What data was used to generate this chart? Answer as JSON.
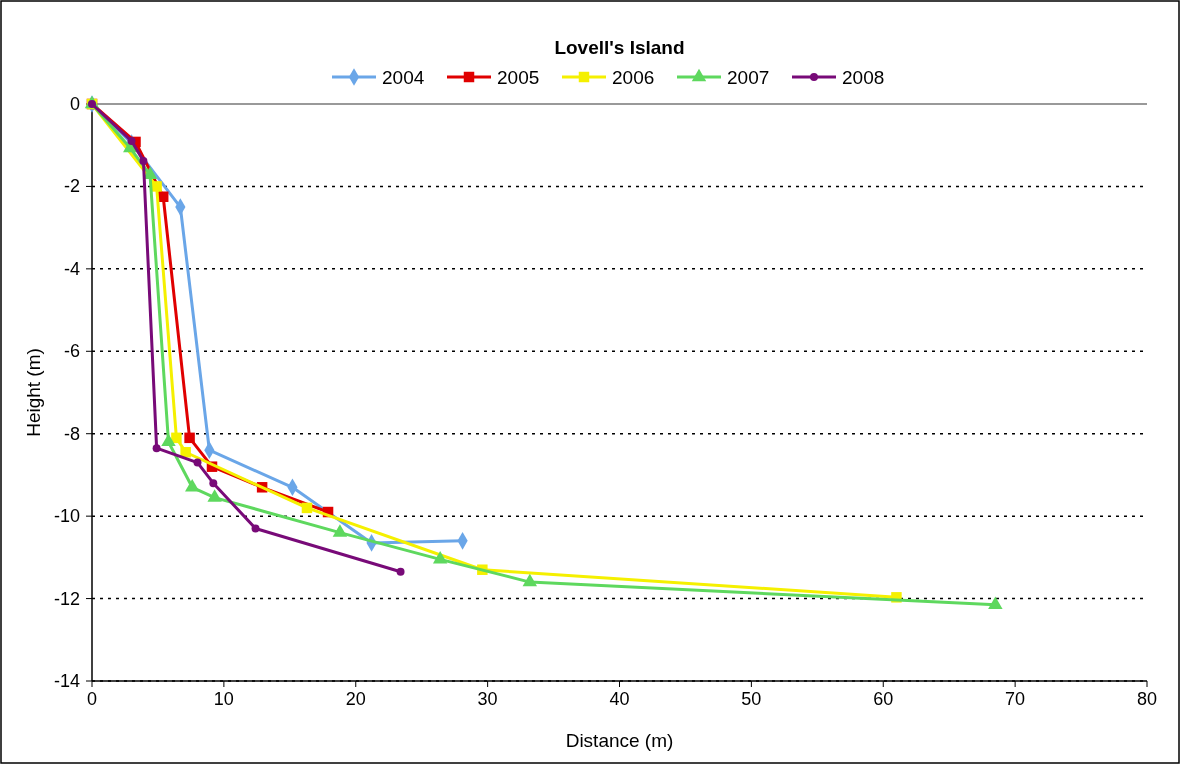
{
  "chart_data": {
    "type": "line",
    "title": "Lovell's Island",
    "xlabel": "Distance (m)",
    "ylabel": "Height (m)",
    "xlim": [
      0,
      80
    ],
    "xticks": [
      0,
      10,
      20,
      30,
      40,
      50,
      60,
      70,
      80
    ],
    "ylim": [
      -14,
      0
    ],
    "yticks": [
      -14,
      -12,
      -10,
      -8,
      -6,
      -4,
      -2,
      0
    ],
    "grid": "y",
    "legend": "top",
    "line_style": "solid",
    "series": [
      {
        "name": "2004",
        "color": "#6aa6e8",
        "marker": "diamond",
        "x": [
          0,
          3,
          4.5,
          6.7,
          8.9,
          15.2,
          21.2,
          28.1
        ],
        "values": [
          0,
          -0.95,
          null,
          -2.5,
          -8.4,
          -9.3,
          -10.65,
          -10.6
        ]
      },
      {
        "name": "2005",
        "color": "#e00000",
        "marker": "square",
        "x": [
          0,
          3.3,
          5.4,
          7.4,
          9.1,
          12.9,
          17.9
        ],
        "values": [
          0,
          -0.92,
          -2.25,
          -8.1,
          -8.8,
          -9.3,
          -9.9
        ]
      },
      {
        "name": "2006",
        "color": "#f5f000",
        "marker": "square",
        "x": [
          0,
          2.7,
          4.9,
          6.4,
          7.1,
          16.3,
          29.6,
          61.0
        ],
        "values": [
          0,
          null,
          -2.0,
          -8.1,
          -8.45,
          -9.8,
          -11.3,
          -11.97
        ]
      },
      {
        "name": "2007",
        "color": "#5ed85e",
        "marker": "triangle",
        "x": [
          0,
          2.9,
          4.4,
          5.8,
          7.6,
          9.3,
          18.8,
          26.4,
          33.2,
          68.5
        ],
        "values": [
          0,
          -1.07,
          -1.72,
          -8.2,
          -9.3,
          -9.55,
          -10.4,
          -11.05,
          -11.6,
          -12.15
        ]
      },
      {
        "name": "2008",
        "color": "#780a78",
        "marker": "circle",
        "x": [
          0,
          3.0,
          3.9,
          4.9,
          8.0,
          9.2,
          12.4,
          23.4
        ],
        "values": [
          0,
          -0.9,
          -1.38,
          -8.35,
          -8.7,
          -9.2,
          -10.3,
          -11.35
        ]
      }
    ]
  }
}
